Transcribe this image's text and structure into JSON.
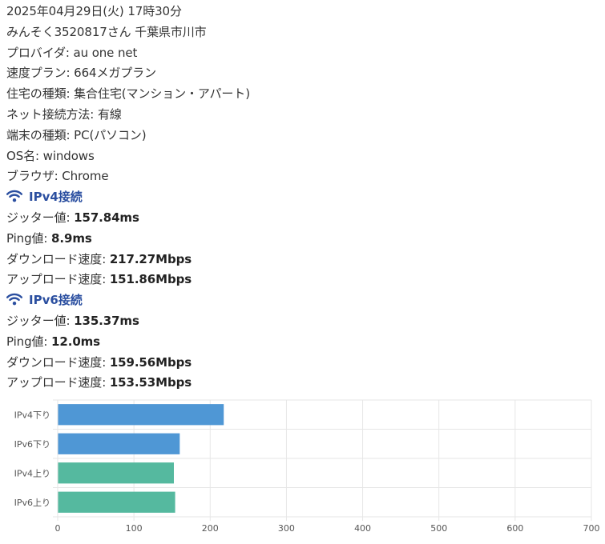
{
  "info": {
    "datetime": "2025年04月29日(火) 17時30分",
    "user": "みんそく3520817さん 千葉県市川市",
    "provider": {
      "label": "プロバイダ:",
      "value": "au one net"
    },
    "speed_plan": {
      "label": "速度プラン:",
      "value": "664メガプラン"
    },
    "housing": {
      "label": "住宅の種類:",
      "value": "集合住宅(マンション・アパート)"
    },
    "connection": {
      "label": "ネット接続方法:",
      "value": "有線"
    },
    "device": {
      "label": "端末の種類:",
      "value": "PC(パソコン)"
    },
    "os": {
      "label": "OS名:",
      "value": "windows"
    },
    "browser": {
      "label": "ブラウザ:",
      "value": "Chrome"
    }
  },
  "ipv4": {
    "heading": "IPv4接続",
    "icon": "wifi-icon",
    "jitter": {
      "label": "ジッター値:",
      "value": "157.84ms"
    },
    "ping": {
      "label": "Ping値:",
      "value": "8.9ms"
    },
    "download": {
      "label": "ダウンロード速度:",
      "value": "217.27Mbps"
    },
    "upload": {
      "label": "アップロード速度:",
      "value": "151.86Mbps"
    }
  },
  "ipv6": {
    "heading": "IPv6接続",
    "icon": "wifi-icon",
    "jitter": {
      "label": "ジッター値:",
      "value": "135.37ms"
    },
    "ping": {
      "label": "Ping値:",
      "value": "12.0ms"
    },
    "download": {
      "label": "ダウンロード速度:",
      "value": "159.56Mbps"
    },
    "upload": {
      "label": "アップロード速度:",
      "value": "153.53Mbps"
    }
  },
  "colors": {
    "heading": "#2b4fa0",
    "download_bar": "#4f97d5",
    "upload_bar": "#55b99f",
    "grid": "#e6e6e6",
    "tick_text": "#555555"
  },
  "chart_data": {
    "type": "bar",
    "orientation": "horizontal",
    "categories": [
      "IPv4下り",
      "IPv6下り",
      "IPv4上り",
      "IPv6上り"
    ],
    "values": [
      217.27,
      159.56,
      151.86,
      153.53
    ],
    "bar_colors": [
      "#4f97d5",
      "#4f97d5",
      "#55b99f",
      "#55b99f"
    ],
    "xlim": [
      0,
      700
    ],
    "xticks": [
      0,
      100,
      200,
      300,
      400,
      500,
      600,
      700
    ],
    "grid": true,
    "legend": false
  }
}
